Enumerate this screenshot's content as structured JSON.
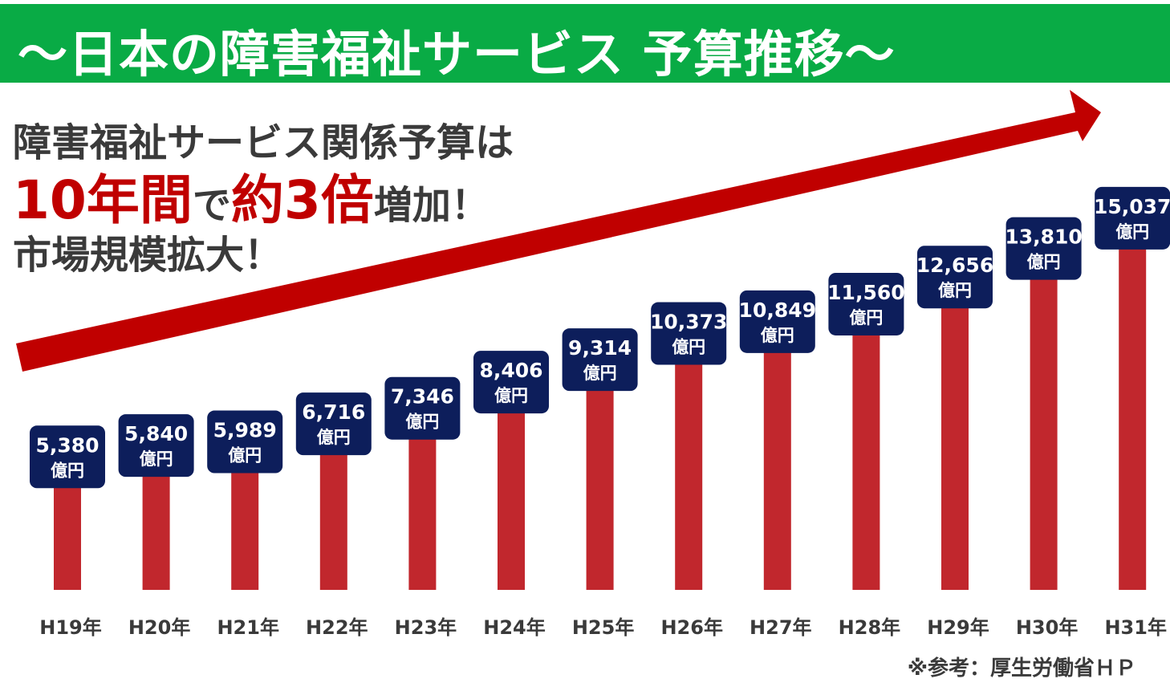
{
  "banner": {
    "title": "〜日本の障害福祉サービス 予算推移〜"
  },
  "headline": {
    "line1": "障害福祉サービス関係予算は",
    "line2_a": "10年間",
    "line2_b": "で",
    "line2_c": "約3倍",
    "line2_d": "増加！",
    "line3": "市場規模拡大！"
  },
  "source": "※参考：厚生労働省ＨＰ",
  "colors": {
    "banner": "#09ab45",
    "bar": "#c1272d",
    "label_box": "#0d1e5b",
    "arrow": "#c00000",
    "text": "#3a3a3a"
  },
  "chart_data": {
    "type": "bar",
    "categories": [
      "H19年",
      "H20年",
      "H21年",
      "H22年",
      "H23年",
      "H24年",
      "H25年",
      "H26年",
      "H27年",
      "H28年",
      "H29年",
      "H30年",
      "H31年"
    ],
    "values": [
      5380,
      5840,
      5989,
      6716,
      7346,
      8406,
      9314,
      10373,
      10849,
      11560,
      12656,
      13810,
      15037
    ],
    "value_labels": [
      "5,380",
      "5,840",
      "5,989",
      "6,716",
      "7,346",
      "8,406",
      "9,314",
      "10,373",
      "10,849",
      "11,560",
      "12,656",
      "13,810",
      "15,037"
    ],
    "unit": "億円",
    "grid": false
  }
}
